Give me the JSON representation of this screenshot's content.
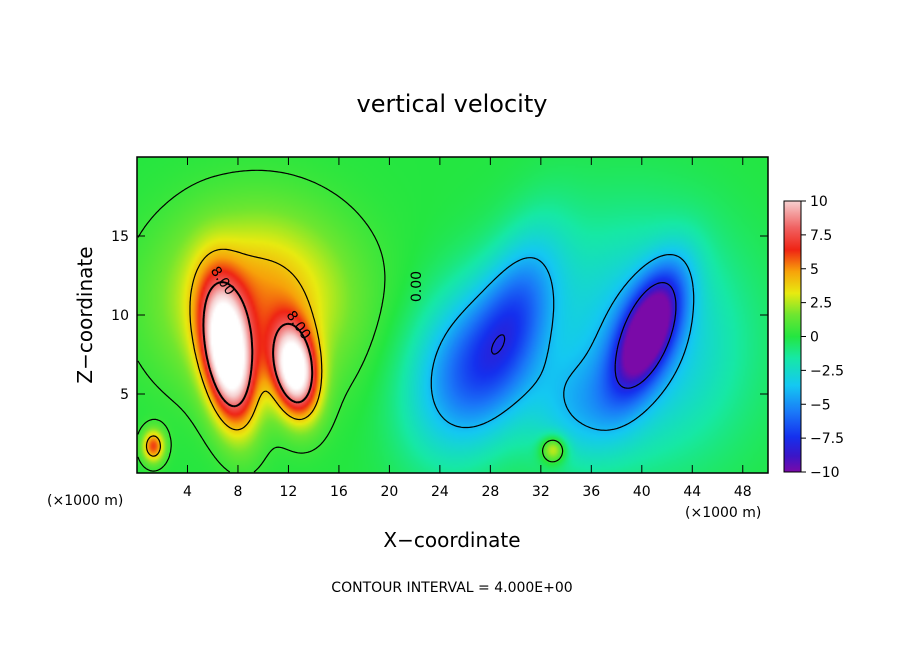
{
  "chart_data": {
    "type": "heatmap",
    "title": "vertical velocity",
    "xlabel": "X−coordinate",
    "ylabel": "Z−coordinate",
    "x_unit": "(×1000 m)",
    "x_unit_right": "(×1000 m)",
    "xlim": [
      0,
      50
    ],
    "ylim": [
      0,
      20
    ],
    "x_ticks": [
      4,
      8,
      12,
      16,
      20,
      24,
      28,
      32,
      36,
      40,
      44,
      48
    ],
    "x_tick_labels": [
      "4",
      "8",
      "12",
      "16",
      "20",
      "24",
      "28",
      "32",
      "36",
      "40",
      "44",
      "48"
    ],
    "y_ticks": [
      5,
      10,
      15
    ],
    "y_tick_labels": [
      "5",
      "10",
      "15"
    ],
    "colorbar": {
      "range": [
        -10,
        10
      ],
      "ticks": [
        10,
        7.5,
        5,
        2.5,
        0,
        -2.5,
        -5,
        -7.5,
        -10
      ],
      "tick_labels": [
        "10",
        "7.5",
        "5",
        "2.5",
        "0",
        "−2.5",
        "−5",
        "−7.5",
        "−10"
      ]
    },
    "contour_labels": [
      {
        "text": "8.00",
        "x": 6.5,
        "z": 12.0,
        "angle": 55
      },
      {
        "text": "8.00",
        "x": 12.5,
        "z": 9.2,
        "angle": 55
      },
      {
        "text": "0.00",
        "x": 22.5,
        "z": 11.8,
        "angle": -90
      }
    ],
    "footer": "CONTOUR INTERVAL = 4.000E+00",
    "features": [
      {
        "kind": "updraft",
        "x": 7.2,
        "z": 7.5,
        "sx": 1.3,
        "sz": 3.0,
        "amp": 13,
        "rot": -0.18
      },
      {
        "kind": "updraft",
        "x": 12.5,
        "z": 6.5,
        "sx": 1.2,
        "sz": 2.0,
        "amp": 12,
        "rot": -0.2
      },
      {
        "kind": "updraft",
        "x": 9.5,
        "z": 11.0,
        "sx": 5.0,
        "sz": 3.8,
        "amp": 5,
        "rot": 0
      },
      {
        "kind": "updraft",
        "x": 1.3,
        "z": 1.7,
        "sx": 0.6,
        "sz": 0.7,
        "amp": 6,
        "rot": 0
      },
      {
        "kind": "updraft",
        "x": 33.0,
        "z": 1.5,
        "sx": 0.7,
        "sz": 0.6,
        "amp": 4.5,
        "rot": 0
      },
      {
        "kind": "downdraft",
        "x": 26.0,
        "z": 6.5,
        "sx": 3.0,
        "sz": 4.0,
        "amp": -5.5,
        "rot": 0.5
      },
      {
        "kind": "downdraft",
        "x": 30.0,
        "z": 10.0,
        "sx": 2.0,
        "sz": 4.0,
        "amp": -4.5,
        "rot": 0.4
      },
      {
        "kind": "downdraft",
        "x": 40.5,
        "z": 9.0,
        "sx": 1.4,
        "sz": 3.0,
        "amp": -9.5,
        "rot": 0.5
      },
      {
        "kind": "downdraft",
        "x": 40.0,
        "z": 8.5,
        "sx": 5.5,
        "sz": 5.0,
        "amp": -4.0,
        "rot": 0.3
      },
      {
        "kind": "downdraft",
        "x": 35.0,
        "z": 4.0,
        "sx": 3.0,
        "sz": 2.5,
        "amp": -2.5,
        "rot": 0
      }
    ]
  }
}
